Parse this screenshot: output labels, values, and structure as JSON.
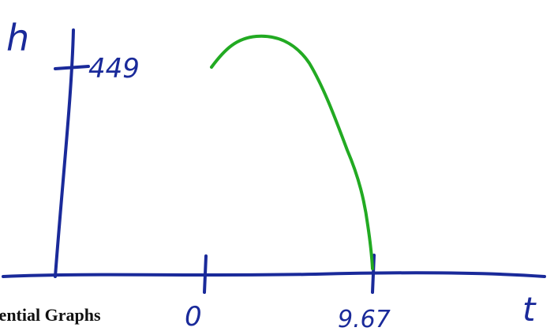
{
  "caption": "sential Graphs",
  "labels": {
    "y_axis": "h",
    "y_tick": "449",
    "x_axis": "t",
    "x_tick_start": "0",
    "x_tick_end": "9.67"
  },
  "colors": {
    "axis_ink": "#1a2a9a",
    "curve_ink": "#22aa22",
    "caption_text": "#111111"
  }
}
